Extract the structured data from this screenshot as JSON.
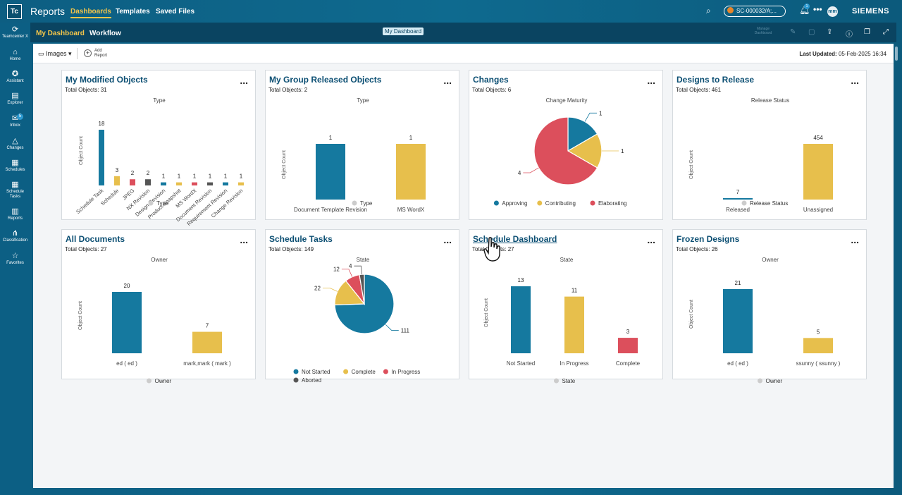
{
  "colors": {
    "blue": "#15799f",
    "yellow": "#e7bf4c",
    "red": "#dc4f5c",
    "gray": "#555555",
    "brand_bg": "#0d5e82",
    "accent": "#f4c54a"
  },
  "app": {
    "logo": "Tc",
    "title": "Reports",
    "tabs": [
      "Dashboards",
      "Templates",
      "Saved Files"
    ],
    "context": "SC-000032/A;...",
    "notifications": "1",
    "avatar": "mm",
    "brand": "SIEMENS"
  },
  "sidebar": {
    "items": [
      {
        "label": "Teamcenter X",
        "icon": "teamcenter-icon"
      },
      {
        "label": "Home",
        "icon": "home-icon"
      },
      {
        "label": "Assistant",
        "icon": "assistant-icon"
      },
      {
        "label": "Explorer",
        "icon": "explorer-icon"
      },
      {
        "label": "Inbox",
        "icon": "inbox-icon",
        "badge": "5"
      },
      {
        "label": "Changes",
        "icon": "changes-icon"
      },
      {
        "label": "Schedules",
        "icon": "schedules-icon"
      },
      {
        "label": "Schedule Tasks",
        "icon": "schedule-tasks-icon"
      },
      {
        "label": "Reports",
        "icon": "reports-icon"
      },
      {
        "label": "Classification",
        "icon": "classification-icon"
      },
      {
        "label": "Favorites",
        "icon": "star-icon"
      }
    ]
  },
  "subnav": {
    "tabs": [
      "My Dashboard",
      "Workflow"
    ],
    "pill": "My Dashboard",
    "manage": "Manage Dashboard"
  },
  "toolbar": {
    "images_label": "Images",
    "add_report": "Add Report",
    "last_updated_label": "Last Updated:",
    "last_updated_value": "05-Feb-2025 16:34"
  },
  "cards": [
    {
      "title": "My Modified Objects",
      "total": "Total Objects: 31",
      "more": "..."
    },
    {
      "title": "My Group Released Objects",
      "total": "Total Objects: 2",
      "more": "..."
    },
    {
      "title": "Changes",
      "total": "Total Objects: 6",
      "more": "..."
    },
    {
      "title": "Designs to Release",
      "total": "Total Objects: 461",
      "more": "..."
    },
    {
      "title": "All Documents",
      "total": "Total Objects: 27",
      "more": "..."
    },
    {
      "title": "Schedule Tasks",
      "total": "Total Objects: 149",
      "more": "..."
    },
    {
      "title": "Schedule Dashboard",
      "total": "Total Objects: 27",
      "more": "..."
    },
    {
      "title": "Frozen Designs",
      "total": "Total Objects: 26",
      "more": "..."
    }
  ],
  "chart_data": [
    {
      "type": "bar",
      "title": "Type",
      "ylabel": "Object Count",
      "categories": [
        "Schedule Task",
        "Schedule",
        "JPEG",
        "NX Revision",
        "Design Revision",
        "Product Snapshot",
        "MS WordX",
        "Document Revision",
        "Requirement Revision",
        "Change Revision"
      ],
      "values": [
        18,
        3,
        2,
        2,
        1,
        1,
        1,
        1,
        1,
        1
      ],
      "colors": [
        "#15799f",
        "#e7bf4c",
        "#dc4f5c",
        "#555555",
        "#15799f",
        "#e7bf4c",
        "#dc4f5c",
        "#555555",
        "#15799f",
        "#e7bf4c"
      ],
      "ymax": 18,
      "legend": [
        "Type"
      ]
    },
    {
      "type": "bar",
      "title": "Type",
      "ylabel": "Object Count",
      "categories": [
        "Document Template Revision",
        "MS WordX"
      ],
      "values": [
        1,
        1
      ],
      "colors": [
        "#15799f",
        "#e7bf4c"
      ],
      "ymax": 1,
      "legend": [
        "Type"
      ]
    },
    {
      "type": "pie",
      "title": "Change Maturity",
      "categories": [
        "Approving",
        "Contributing",
        "Elaborating"
      ],
      "values": [
        1,
        1,
        4
      ],
      "colors": [
        "#15799f",
        "#e7bf4c",
        "#dc4f5c"
      ],
      "legend": [
        "Approving",
        "Contributing",
        "Elaborating"
      ]
    },
    {
      "type": "bar",
      "title": "Release Status",
      "ylabel": "Object Count",
      "categories": [
        "Released",
        "Unassigned"
      ],
      "values": [
        7,
        454
      ],
      "colors": [
        "#15799f",
        "#e7bf4c"
      ],
      "ymax": 454,
      "legend": [
        "Release Status"
      ]
    },
    {
      "type": "bar",
      "title": "Owner",
      "ylabel": "Object Count",
      "categories": [
        "ed ( ed )",
        "mark,mark ( mark )"
      ],
      "values": [
        20,
        7
      ],
      "colors": [
        "#15799f",
        "#e7bf4c"
      ],
      "ymax": 20,
      "legend": [
        "Owner"
      ]
    },
    {
      "type": "pie",
      "title": "State",
      "categories": [
        "Not Started",
        "Complete",
        "In Progress",
        "Aborted"
      ],
      "values": [
        111,
        22,
        12,
        4
      ],
      "colors": [
        "#15799f",
        "#e7bf4c",
        "#dc4f5c",
        "#555555"
      ],
      "legend": [
        "Not Started",
        "Complete",
        "In Progress",
        "Aborted"
      ]
    },
    {
      "type": "bar",
      "title": "State",
      "ylabel": "Object Count",
      "categories": [
        "Not Started",
        "In Progress",
        "Complete"
      ],
      "values": [
        13,
        11,
        3
      ],
      "colors": [
        "#15799f",
        "#e7bf4c",
        "#dc4f5c"
      ],
      "ymax": 13,
      "legend": [
        "State"
      ]
    },
    {
      "type": "bar",
      "title": "Owner",
      "ylabel": "Object Count",
      "categories": [
        "ed ( ed )",
        "ssunny ( ssunny )"
      ],
      "values": [
        21,
        5
      ],
      "colors": [
        "#15799f",
        "#e7bf4c"
      ],
      "ymax": 21,
      "legend": [
        "Owner"
      ]
    }
  ]
}
